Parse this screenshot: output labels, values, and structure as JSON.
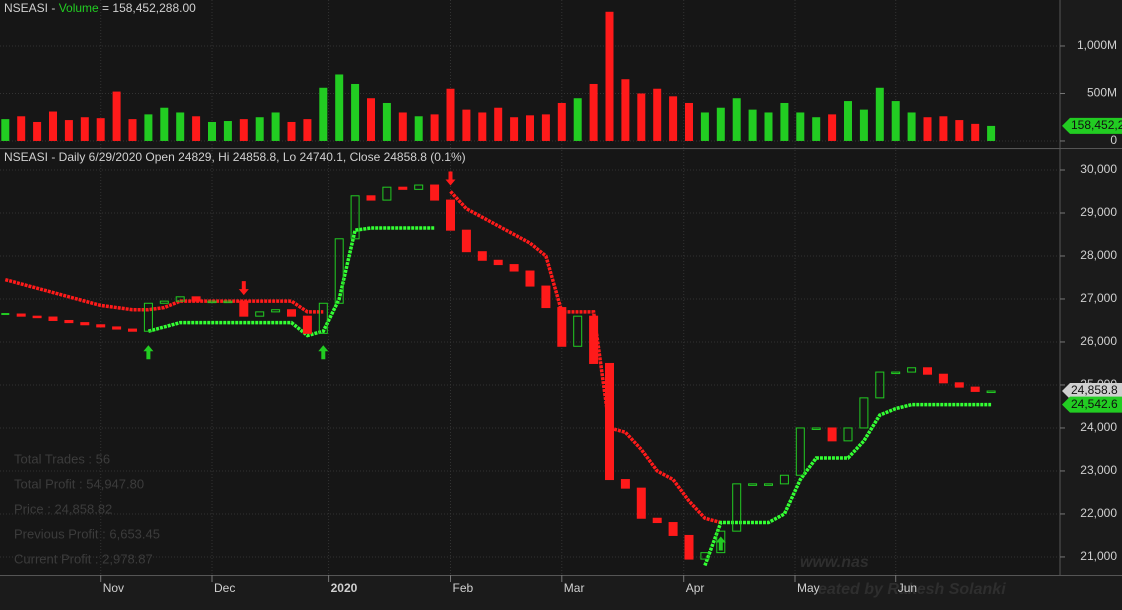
{
  "chart_data": [
    {
      "type": "bar",
      "title": [
        "NSEASI - ",
        "Volume",
        " = 158,452,288.00"
      ],
      "x": [
        0,
        3,
        6,
        9,
        12,
        15,
        18,
        21,
        24,
        27,
        30,
        33,
        36,
        39,
        42,
        45,
        48,
        51,
        54,
        57,
        60,
        63,
        66,
        69,
        72,
        75,
        78,
        81,
        84,
        87,
        90,
        93,
        96,
        99,
        102,
        105,
        108,
        111,
        114,
        117,
        120,
        123,
        126,
        129,
        132,
        135,
        138,
        141,
        144,
        147,
        150,
        153,
        156,
        159,
        162,
        165,
        168,
        171,
        174,
        177,
        180,
        183,
        186
      ],
      "values": [
        230,
        260,
        200,
        310,
        220,
        250,
        240,
        520,
        230,
        280,
        350,
        300,
        260,
        200,
        210,
        230,
        250,
        300,
        200,
        230,
        560,
        700,
        600,
        450,
        400,
        300,
        260,
        280,
        550,
        330,
        300,
        350,
        250,
        270,
        280,
        400,
        450,
        600,
        1360,
        650,
        500,
        550,
        470,
        400,
        300,
        350,
        450,
        330,
        300,
        400,
        300,
        250,
        280,
        420,
        330,
        560,
        420,
        300,
        250,
        260,
        220,
        180,
        158.452288
      ],
      "ylim": [
        -74,
        1484
      ],
      "yticks": [
        0,
        {
          "value": 500,
          "label": "500M"
        },
        {
          "value": 1000,
          "label": "1,000M"
        }
      ],
      "last_label": "158,452,2",
      "tag_color": "#22cc22",
      "grid": true
    },
    {
      "type": "price",
      "title": "NSEASI - Daily 6/29/2020 Open 24829, Hi 24858.8, Lo 24740.1, Close 24858.8 (0.1%)",
      "x": [
        0,
        3,
        6,
        9,
        12,
        15,
        18,
        21,
        24,
        27,
        30,
        33,
        36,
        39,
        42,
        45,
        48,
        51,
        54,
        57,
        60,
        63,
        66,
        69,
        72,
        75,
        78,
        81,
        84,
        87,
        90,
        93,
        96,
        99,
        102,
        105,
        108,
        111,
        114,
        117,
        120,
        123,
        126,
        129,
        132,
        135,
        138,
        141,
        144,
        147,
        150,
        153,
        156,
        159,
        162,
        165,
        168,
        171,
        174,
        177,
        180,
        183,
        186
      ],
      "values": [
        26650,
        26600,
        26580,
        26500,
        26450,
        26400,
        26350,
        26300,
        26250,
        26900,
        26950,
        27050,
        26950,
        26950,
        26950,
        26600,
        26700,
        26750,
        26600,
        26200,
        26900,
        28400,
        29400,
        29300,
        29600,
        29550,
        29650,
        29300,
        28600,
        28100,
        27900,
        27800,
        27650,
        27300,
        26800,
        25900,
        26600,
        25500,
        22800,
        22600,
        21900,
        21800,
        21500,
        20950,
        21100,
        21600,
        22700,
        22700,
        22700,
        22900,
        24000,
        24000,
        23700,
        24000,
        24700,
        25300,
        25300,
        25400,
        25250,
        25050,
        24950,
        24850,
        24858.8
      ],
      "up_color": "#22cc22",
      "down_color": "#ff1a1a",
      "series": [
        {
          "color": "#ff1a1a",
          "values": [
            27450,
            27350,
            27250,
            27150,
            27050,
            26950,
            26850,
            26800,
            26750,
            26750,
            26800,
            26950,
            26950,
            26950,
            26950,
            26950,
            26950,
            26950,
            26950,
            26700,
            26700,
            null,
            null,
            null,
            null,
            null,
            null,
            null,
            29500,
            29100,
            28900,
            28700,
            28500,
            28300,
            28000,
            26700,
            26700,
            26700,
            24000,
            23900,
            23500,
            23000,
            22800,
            22300,
            21900,
            21800,
            null,
            null,
            null,
            null,
            null,
            null,
            null,
            null,
            null,
            null,
            null,
            null,
            null,
            null,
            null,
            null,
            null
          ]
        },
        {
          "color": "#33ff33",
          "values": [
            null,
            null,
            null,
            null,
            null,
            null,
            null,
            null,
            null,
            26250,
            26350,
            26450,
            26450,
            26450,
            26450,
            26450,
            26450,
            26450,
            26450,
            26150,
            26250,
            27000,
            28600,
            28650,
            28650,
            28650,
            28650,
            28650,
            null,
            null,
            null,
            null,
            null,
            null,
            null,
            null,
            null,
            null,
            null,
            null,
            null,
            null,
            null,
            null,
            20800,
            21800,
            21800,
            21800,
            21800,
            22000,
            22800,
            23300,
            23300,
            23300,
            23700,
            24300,
            24450,
            24542.6,
            24542.6,
            24542.6,
            24542.6,
            24542.6,
            24542.6
          ]
        }
      ],
      "buy_signals": [
        27,
        60,
        135
      ],
      "sell_signals": [
        45,
        84
      ],
      "ylim": [
        20580,
        30465
      ],
      "yticks": [
        {
          "value": 21000,
          "label": "21,000"
        },
        {
          "value": 22000,
          "label": "22,000"
        },
        {
          "value": 23000,
          "label": "23,000"
        },
        {
          "value": 24000,
          "label": "24,000"
        },
        {
          "value": 25000,
          "label": "25,000"
        },
        {
          "value": 26000,
          "label": "26,000"
        },
        {
          "value": 27000,
          "label": "27,000"
        },
        {
          "value": 28000,
          "label": "28,000"
        },
        {
          "value": 29000,
          "label": "29,000"
        },
        {
          "value": 30000,
          "label": "30,000"
        }
      ],
      "xlim": [
        -1,
        199
      ],
      "xticks": [
        {
          "value": 18,
          "label": "Nov"
        },
        {
          "value": 39,
          "label": "Dec"
        },
        {
          "value": 61,
          "label": "2020",
          "bold": true
        },
        {
          "value": 84,
          "label": "Feb"
        },
        {
          "value": 105,
          "label": "Mar"
        },
        {
          "value": 128,
          "label": "Apr"
        },
        {
          "value": 149,
          "label": "May"
        },
        {
          "value": 168,
          "label": "Jun"
        }
      ],
      "price_tags": [
        {
          "value": 24858.8,
          "label": "24,858.8",
          "color": "#d0d0d0"
        },
        {
          "value": 24542.6,
          "label": "24,542.6",
          "color": "#22cc22"
        }
      ],
      "grid": true
    }
  ],
  "stats": [
    "Total Trades :  56",
    "Total Profit : 54,947.80",
    "Price : 24,858.82",
    "Previous Profit : 6,653.45",
    "Current Profit : 2,978.87"
  ],
  "watermark": [
    "www.nas",
    "eated by Rakesh Solanki"
  ]
}
